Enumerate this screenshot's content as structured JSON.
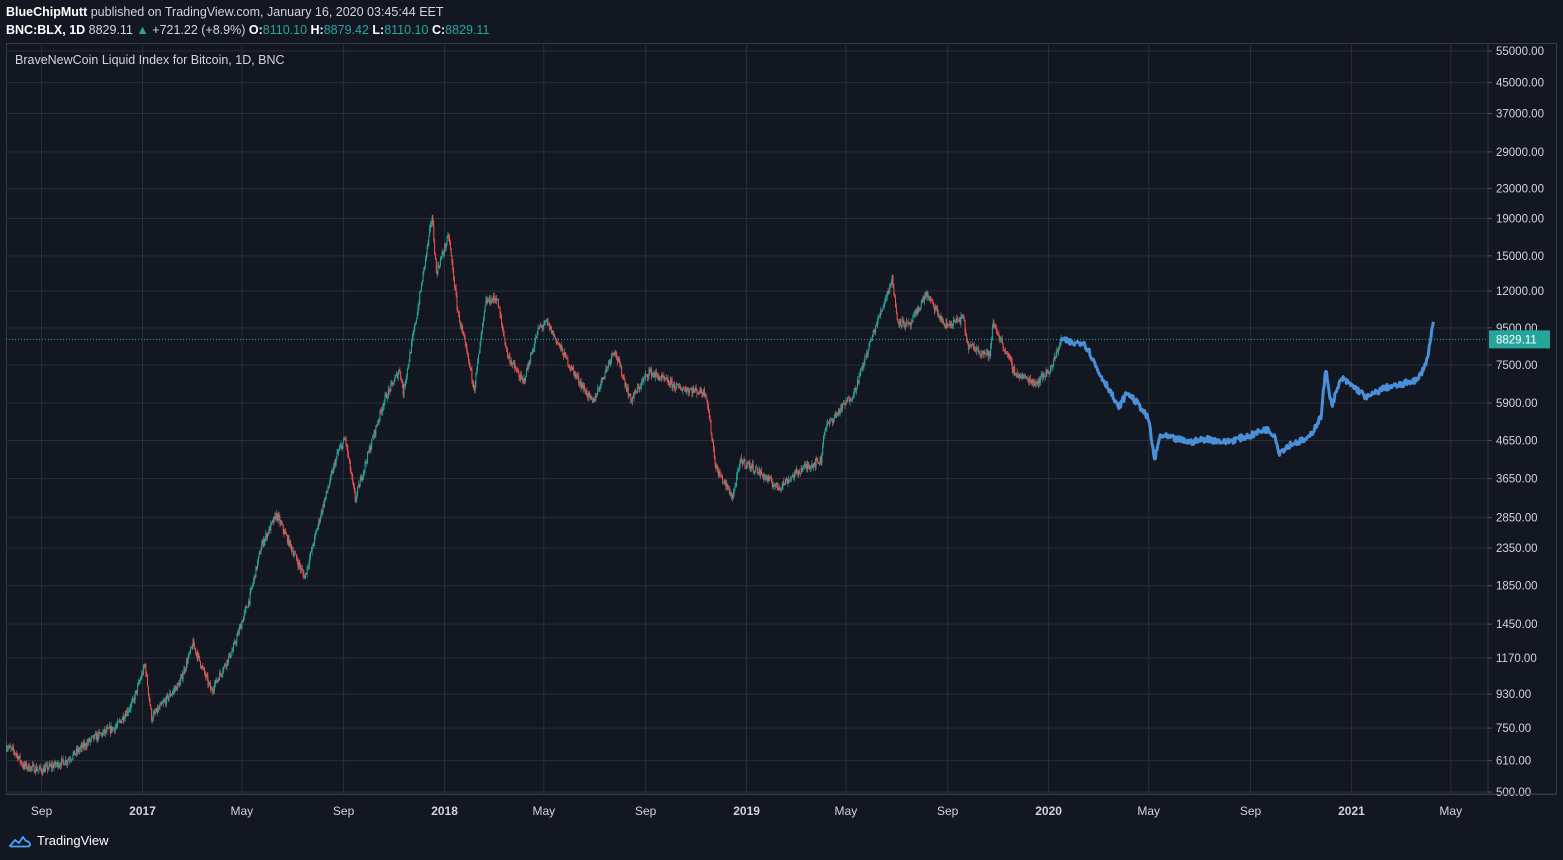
{
  "header": {
    "author": "BlueChipMutt",
    "published_text": "published on TradingView.com, January 16, 2020 03:45:44 EET",
    "symbol": "BNC:BLX, 1D",
    "last": "8829.11",
    "change_arrow": "▲",
    "change": "+721.22 (+8.9%)",
    "open_label": "O:",
    "open": "8110.10",
    "high_label": "H:",
    "high": "8879.42",
    "low_label": "L:",
    "low": "8110.10",
    "close_label": "C:",
    "close": "8829.11"
  },
  "footer": {
    "brand": "TradingView",
    "logo_icon": "tradingview-cloud-icon"
  },
  "colors": {
    "background": "#131722",
    "grid": "#2a2e39",
    "up": "#26a69a",
    "down": "#ef5350",
    "projection": "#4a90d9",
    "axis_text": "#d1d4dc",
    "price_line": "#26a69a"
  },
  "chart_data": {
    "type": "candlestick",
    "title": "BraveNewCoin Liquid Index for Bitcoin, 1D, BNC",
    "y_scale": "log",
    "ylim": [
      500,
      55000
    ],
    "y_ticks": [
      500,
      610,
      750,
      930,
      1170,
      1450,
      1850,
      2350,
      2850,
      3650,
      4650,
      5900,
      7500,
      9500,
      12000,
      15000,
      19000,
      23000,
      29000,
      37000,
      45000,
      55000
    ],
    "y_tick_labels": [
      "500.00",
      "610.00",
      "750.00",
      "930.00",
      "1170.00",
      "1450.00",
      "1850.00",
      "2350.00",
      "2850.00",
      "3650.00",
      "4650.00",
      "5900.00",
      "7500.00",
      "9500.00",
      "12000.00",
      "15000.00",
      "19000.00",
      "23000.00",
      "29000.00",
      "37000.00",
      "45000.00",
      "55000.00"
    ],
    "x_range": [
      "2016-07-20",
      "2021-06-15"
    ],
    "x_ticks": [
      {
        "date": "2016-09-01",
        "label": "Sep",
        "bold": false
      },
      {
        "date": "2017-01-01",
        "label": "2017",
        "bold": true
      },
      {
        "date": "2017-05-01",
        "label": "May",
        "bold": false
      },
      {
        "date": "2017-09-01",
        "label": "Sep",
        "bold": false
      },
      {
        "date": "2018-01-01",
        "label": "2018",
        "bold": true
      },
      {
        "date": "2018-05-01",
        "label": "May",
        "bold": false
      },
      {
        "date": "2018-09-01",
        "label": "Sep",
        "bold": false
      },
      {
        "date": "2019-01-01",
        "label": "2019",
        "bold": true
      },
      {
        "date": "2019-05-01",
        "label": "May",
        "bold": false
      },
      {
        "date": "2019-09-01",
        "label": "Sep",
        "bold": false
      },
      {
        "date": "2020-01-01",
        "label": "2020",
        "bold": true
      },
      {
        "date": "2020-05-01",
        "label": "May",
        "bold": false
      },
      {
        "date": "2020-09-01",
        "label": "Sep",
        "bold": false
      },
      {
        "date": "2021-01-01",
        "label": "2021",
        "bold": true
      },
      {
        "date": "2021-05-01",
        "label": "May",
        "bold": false
      }
    ],
    "last_price": 8829.11,
    "last_price_label": "8829.11",
    "grid": true,
    "series": [
      {
        "kind": "candles_approx",
        "points": [
          [
            "2016-07-20",
            670
          ],
          [
            "2016-08-01",
            640
          ],
          [
            "2016-08-10",
            590
          ],
          [
            "2016-09-01",
            575
          ],
          [
            "2016-10-01",
            610
          ],
          [
            "2016-11-01",
            700
          ],
          [
            "2016-12-01",
            760
          ],
          [
            "2016-12-20",
            880
          ],
          [
            "2017-01-04",
            1120
          ],
          [
            "2017-01-12",
            800
          ],
          [
            "2017-02-15",
            1000
          ],
          [
            "2017-03-03",
            1280
          ],
          [
            "2017-03-25",
            950
          ],
          [
            "2017-04-20",
            1230
          ],
          [
            "2017-05-10",
            1700
          ],
          [
            "2017-05-25",
            2400
          ],
          [
            "2017-06-12",
            2900
          ],
          [
            "2017-07-16",
            1950
          ],
          [
            "2017-08-05",
            2950
          ],
          [
            "2017-08-25",
            4300
          ],
          [
            "2017-09-03",
            4700
          ],
          [
            "2017-09-15",
            3200
          ],
          [
            "2017-10-01",
            4300
          ],
          [
            "2017-10-20",
            6000
          ],
          [
            "2017-11-08",
            7300
          ],
          [
            "2017-11-12",
            6300
          ],
          [
            "2017-11-29",
            10500
          ],
          [
            "2017-12-17",
            19300
          ],
          [
            "2017-12-22",
            13500
          ],
          [
            "2018-01-06",
            17000
          ],
          [
            "2018-01-17",
            10500
          ],
          [
            "2018-02-06",
            6500
          ],
          [
            "2018-02-20",
            11200
          ],
          [
            "2018-03-05",
            11500
          ],
          [
            "2018-03-18",
            8000
          ],
          [
            "2018-04-06",
            6700
          ],
          [
            "2018-04-25",
            9500
          ],
          [
            "2018-05-05",
            9800
          ],
          [
            "2018-06-01",
            7500
          ],
          [
            "2018-06-29",
            5900
          ],
          [
            "2018-07-25",
            8300
          ],
          [
            "2018-08-14",
            6000
          ],
          [
            "2018-09-05",
            7200
          ],
          [
            "2018-10-10",
            6500
          ],
          [
            "2018-11-13",
            6300
          ],
          [
            "2018-11-25",
            3900
          ],
          [
            "2018-12-15",
            3250
          ],
          [
            "2018-12-25",
            4100
          ],
          [
            "2019-01-10",
            3900
          ],
          [
            "2019-02-08",
            3450
          ],
          [
            "2019-03-10",
            3900
          ],
          [
            "2019-04-01",
            4100
          ],
          [
            "2019-04-05",
            5000
          ],
          [
            "2019-05-11",
            6300
          ],
          [
            "2019-05-30",
            8600
          ],
          [
            "2019-06-26",
            13000
          ],
          [
            "2019-07-02",
            10000
          ],
          [
            "2019-07-17",
            9600
          ],
          [
            "2019-08-06",
            11800
          ],
          [
            "2019-08-29",
            9600
          ],
          [
            "2019-09-20",
            10100
          ],
          [
            "2019-09-25",
            8500
          ],
          [
            "2019-10-22",
            8000
          ],
          [
            "2019-10-26",
            9800
          ],
          [
            "2019-11-22",
            7100
          ],
          [
            "2019-12-17",
            6700
          ],
          [
            "2020-01-05",
            7400
          ],
          [
            "2020-01-16",
            8829.11
          ]
        ]
      },
      {
        "kind": "projection",
        "points": [
          [
            "2020-01-16",
            8829
          ],
          [
            "2020-02-01",
            8600
          ],
          [
            "2020-02-12",
            8700
          ],
          [
            "2020-02-20",
            8100
          ],
          [
            "2020-03-01",
            7200
          ],
          [
            "2020-03-15",
            6400
          ],
          [
            "2020-03-25",
            5700
          ],
          [
            "2020-04-05",
            6300
          ],
          [
            "2020-04-20",
            5800
          ],
          [
            "2020-05-01",
            5300
          ],
          [
            "2020-05-08",
            4100
          ],
          [
            "2020-05-15",
            4800
          ],
          [
            "2020-06-01",
            4700
          ],
          [
            "2020-06-20",
            4600
          ],
          [
            "2020-07-10",
            4700
          ],
          [
            "2020-08-01",
            4600
          ],
          [
            "2020-09-01",
            4800
          ],
          [
            "2020-09-20",
            5000
          ],
          [
            "2020-10-01",
            4800
          ],
          [
            "2020-10-05",
            4300
          ],
          [
            "2020-10-20",
            4550
          ],
          [
            "2020-11-10",
            4700
          ],
          [
            "2020-11-25",
            5400
          ],
          [
            "2020-12-01",
            7300
          ],
          [
            "2020-12-08",
            5800
          ],
          [
            "2020-12-20",
            6900
          ],
          [
            "2021-01-05",
            6500
          ],
          [
            "2021-01-20",
            6100
          ],
          [
            "2021-02-10",
            6500
          ],
          [
            "2021-03-01",
            6600
          ],
          [
            "2021-03-15",
            6800
          ],
          [
            "2021-03-22",
            6800
          ],
          [
            "2021-04-02",
            7700
          ],
          [
            "2021-04-10",
            9800
          ]
        ]
      }
    ]
  }
}
